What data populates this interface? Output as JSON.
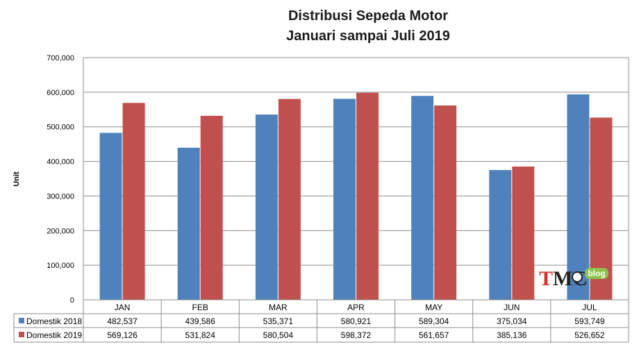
{
  "chart_data": {
    "type": "bar",
    "title": "Distribusi Sepeda Motor",
    "subtitle": "Januari sampai Juli 2019",
    "ylabel": "Unit",
    "xlabel": "",
    "ylim": [
      0,
      700000
    ],
    "yticks": [
      0,
      100000,
      200000,
      300000,
      400000,
      500000,
      600000,
      700000
    ],
    "ytick_labels": [
      "0",
      "100,000",
      "200,000",
      "300,000",
      "400,000",
      "500,000",
      "600,000",
      "700,000"
    ],
    "grid": true,
    "legend_position": "data-table-left",
    "categories": [
      "JAN",
      "FEB",
      "MAR",
      "APR",
      "MAY",
      "JUN",
      "JUL"
    ],
    "series": [
      {
        "name": "Domestik 2018",
        "color": "#4f81bd",
        "values": [
          482537,
          439586,
          535371,
          580921,
          589304,
          375034,
          593749
        ],
        "labels": [
          "482,537",
          "439,586",
          "535,371",
          "580,921",
          "589,304",
          "375,034",
          "593,749"
        ]
      },
      {
        "name": "Domestik 2019",
        "color": "#c0504d",
        "values": [
          569126,
          531824,
          580504,
          598372,
          561657,
          385136,
          526652
        ],
        "labels": [
          "569,126",
          "531,824",
          "580,504",
          "598,372",
          "561,657",
          "385,136",
          "526,652"
        ]
      }
    ]
  },
  "watermark": {
    "text": "TMC",
    "badge": "blog",
    "color_t": "#d32f2f",
    "color_mc": "#222222",
    "color_badge": "#8bc34a"
  }
}
